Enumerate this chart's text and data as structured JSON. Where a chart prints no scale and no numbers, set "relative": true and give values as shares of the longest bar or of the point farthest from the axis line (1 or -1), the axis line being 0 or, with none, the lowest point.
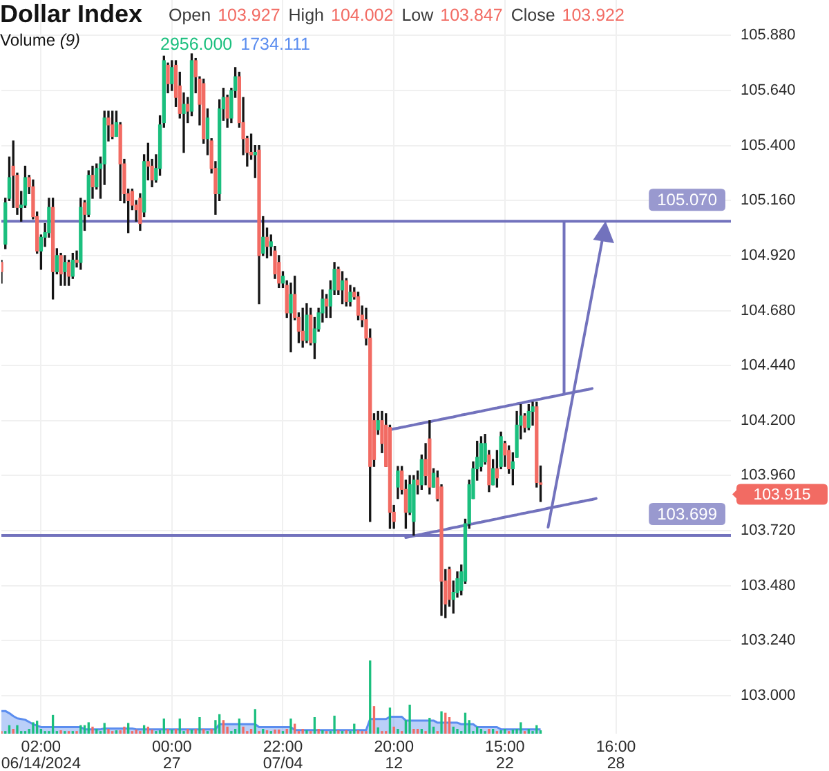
{
  "chart_data": [
    {
      "type": "candlestick",
      "title": "Dollar Index",
      "annotations": [
        "Open 103.927",
        "High 104.002",
        "Low 103.847",
        "Close 103.922",
        "103.915"
      ],
      "categories": [
        null,
        null,
        null,
        null,
        null,
        null,
        null,
        null,
        null,
        null,
        "02:00\n06/14/2024",
        null,
        null,
        null,
        null,
        null,
        null,
        null,
        null,
        null,
        null,
        null,
        null,
        null,
        null,
        null,
        null,
        null,
        null,
        null,
        null,
        null,
        null,
        null,
        null,
        null,
        null,
        null,
        null,
        null,
        null,
        null,
        null,
        "00:00\n27",
        null,
        null,
        null,
        null,
        null,
        null,
        null,
        null,
        null,
        null,
        null,
        null,
        null,
        null,
        null,
        null,
        null,
        null,
        null,
        null,
        null,
        null,
        null,
        null,
        null,
        null,
        null,
        "22:00\n07/04",
        null,
        null,
        null,
        null,
        null,
        null,
        null,
        null,
        null,
        null,
        null,
        null,
        null,
        null,
        null,
        null,
        null,
        null,
        null,
        null,
        null,
        null,
        null,
        null,
        null,
        null,
        null,
        "20:00\n12",
        null,
        null,
        null,
        null,
        null,
        null,
        null,
        null,
        null,
        null,
        null,
        null,
        null,
        null,
        null,
        null,
        null,
        null,
        null,
        null,
        null,
        null,
        null,
        null,
        null,
        null,
        null,
        "15:00\n22",
        null,
        null,
        null,
        null,
        null,
        null,
        null,
        null,
        null,
        null,
        null,
        null,
        null,
        null,
        null,
        null,
        null,
        null,
        null,
        null,
        null,
        null,
        null,
        null,
        null,
        null,
        null,
        "16:00\n28",
        null,
        null,
        null,
        null,
        null,
        null,
        null,
        null,
        null,
        null,
        null,
        null,
        null,
        null,
        null,
        null,
        null,
        null,
        null,
        null,
        null,
        null,
        null,
        null,
        null,
        null,
        null,
        null,
        null
      ],
      "ohlc": [
        [
          104.89,
          104.9,
          104.8,
          104.85
        ],
        [
          104.97,
          105.17,
          104.95,
          105.15
        ],
        [
          105.17,
          105.35,
          105.16,
          105.26
        ],
        [
          105.31,
          105.42,
          105.13,
          105.27
        ],
        [
          105.27,
          105.28,
          105.1,
          105.13
        ],
        [
          105.13,
          105.2,
          105.07,
          105.14
        ],
        [
          105.14,
          105.31,
          105.13,
          105.26
        ],
        [
          105.26,
          105.27,
          105.19,
          105.22
        ],
        [
          105.22,
          105.25,
          105.08,
          105.09
        ],
        [
          105.09,
          105.11,
          104.93,
          104.94
        ],
        [
          104.94,
          105.01,
          104.86,
          105.0
        ],
        [
          105.0,
          105.06,
          104.96,
          105.02
        ],
        [
          105.02,
          105.17,
          105.0,
          105.13
        ],
        [
          105.13,
          105.17,
          104.73,
          104.85
        ],
        [
          104.85,
          104.95,
          104.84,
          104.92
        ],
        [
          104.92,
          104.93,
          104.79,
          104.84
        ],
        [
          104.85,
          104.92,
          104.79,
          104.89
        ],
        [
          104.89,
          104.9,
          104.79,
          104.83
        ],
        [
          104.83,
          104.93,
          104.82,
          104.9
        ],
        [
          104.9,
          104.94,
          104.87,
          104.89
        ],
        [
          104.89,
          105.17,
          104.86,
          105.13
        ],
        [
          105.15,
          105.16,
          105.03,
          105.1
        ],
        [
          105.1,
          105.29,
          105.09,
          105.27
        ],
        [
          105.27,
          105.31,
          105.17,
          105.22
        ],
        [
          105.22,
          105.32,
          105.21,
          105.3
        ],
        [
          105.3,
          105.35,
          105.17,
          105.32
        ],
        [
          105.32,
          105.55,
          105.23,
          105.52
        ],
        [
          105.52,
          105.55,
          105.42,
          105.49
        ],
        [
          105.49,
          105.55,
          105.43,
          105.44
        ],
        [
          105.44,
          105.55,
          105.44,
          105.5
        ],
        [
          105.49,
          105.5,
          105.16,
          105.32
        ],
        [
          105.32,
          105.34,
          105.15,
          105.19
        ],
        [
          105.19,
          105.21,
          105.02,
          105.16
        ],
        [
          105.2,
          105.21,
          105.12,
          105.14
        ],
        [
          105.14,
          105.16,
          105.07,
          105.12
        ],
        [
          105.17,
          105.19,
          105.03,
          105.06
        ],
        [
          105.11,
          105.36,
          105.09,
          105.33
        ],
        [
          105.33,
          105.41,
          105.25,
          105.31
        ],
        [
          105.31,
          105.34,
          105.22,
          105.25
        ],
        [
          105.25,
          105.36,
          105.24,
          105.3
        ],
        [
          105.3,
          105.53,
          105.27,
          105.49
        ],
        [
          105.5,
          105.79,
          105.48,
          105.77
        ],
        [
          105.75,
          105.76,
          105.63,
          105.67
        ],
        [
          105.67,
          105.77,
          105.64,
          105.74
        ],
        [
          105.75,
          105.77,
          105.57,
          105.61
        ],
        [
          105.66,
          105.72,
          105.52,
          105.54
        ],
        [
          105.54,
          105.63,
          105.37,
          105.58
        ],
        [
          105.58,
          105.61,
          105.5,
          105.55
        ],
        [
          105.55,
          105.8,
          105.53,
          105.77
        ],
        [
          105.77,
          105.78,
          105.63,
          105.7
        ],
        [
          105.69,
          105.7,
          105.49,
          105.58
        ],
        [
          105.67,
          105.69,
          105.41,
          105.43
        ],
        [
          105.43,
          105.56,
          105.36,
          105.52
        ],
        [
          105.42,
          105.43,
          105.28,
          105.3
        ],
        [
          105.3,
          105.33,
          105.1,
          105.19
        ],
        [
          105.19,
          105.6,
          105.16,
          105.56
        ],
        [
          105.56,
          105.65,
          105.51,
          105.61
        ],
        [
          105.61,
          105.62,
          105.48,
          105.52
        ],
        [
          105.52,
          105.65,
          105.5,
          105.64
        ],
        [
          105.64,
          105.74,
          105.61,
          105.7
        ],
        [
          105.7,
          105.72,
          105.48,
          105.5
        ],
        [
          105.5,
          105.61,
          105.36,
          105.43
        ],
        [
          105.43,
          105.44,
          105.31,
          105.37
        ],
        [
          105.37,
          105.45,
          105.34,
          105.36
        ],
        [
          105.36,
          105.4,
          105.26,
          105.37
        ],
        [
          105.38,
          105.4,
          104.71,
          104.92
        ],
        [
          104.93,
          105.09,
          104.92,
          105.0
        ],
        [
          105.0,
          105.04,
          104.91,
          104.96
        ],
        [
          104.96,
          105.01,
          104.92,
          104.98
        ],
        [
          104.94,
          104.96,
          104.82,
          104.84
        ],
        [
          104.89,
          104.92,
          104.78,
          104.8
        ],
        [
          104.8,
          104.85,
          104.78,
          104.83
        ],
        [
          104.79,
          104.81,
          104.65,
          104.67
        ],
        [
          104.67,
          104.8,
          104.5,
          104.75
        ],
        [
          104.75,
          104.83,
          104.64,
          104.65
        ],
        [
          104.65,
          104.67,
          104.54,
          104.59
        ],
        [
          104.59,
          104.69,
          104.52,
          104.55
        ],
        [
          104.55,
          104.71,
          104.54,
          104.66
        ],
        [
          104.66,
          104.69,
          104.53,
          104.54
        ],
        [
          104.54,
          104.65,
          104.47,
          104.6
        ],
        [
          104.6,
          104.69,
          104.59,
          104.67
        ],
        [
          104.67,
          104.77,
          104.63,
          104.73
        ],
        [
          104.73,
          104.75,
          104.65,
          104.7
        ],
        [
          104.7,
          104.81,
          104.65,
          104.77
        ],
        [
          104.77,
          104.89,
          104.75,
          104.86
        ],
        [
          104.86,
          104.87,
          104.75,
          104.77
        ],
        [
          104.77,
          104.85,
          104.71,
          104.81
        ],
        [
          104.81,
          104.82,
          104.7,
          104.72
        ],
        [
          104.72,
          104.79,
          104.7,
          104.76
        ],
        [
          104.76,
          104.78,
          104.73,
          104.74
        ],
        [
          104.74,
          104.76,
          104.64,
          104.66
        ],
        [
          104.66,
          104.7,
          104.61,
          104.64
        ],
        [
          104.64,
          104.69,
          104.53,
          104.56
        ],
        [
          104.56,
          104.6,
          103.76,
          104.0
        ],
        [
          104.2,
          104.23,
          104.0,
          104.03
        ],
        [
          104.16,
          104.24,
          104.14,
          104.2
        ],
        [
          104.2,
          104.24,
          104.06,
          104.1
        ],
        [
          104.18,
          104.23,
          104.0,
          104.0
        ],
        [
          104.17,
          104.18,
          103.73,
          103.8
        ],
        [
          103.8,
          103.83,
          103.73,
          103.76
        ],
        [
          103.91,
          104.0,
          103.86,
          103.98
        ],
        [
          103.98,
          104.0,
          103.88,
          103.9
        ],
        [
          103.9,
          103.94,
          103.73,
          103.8
        ],
        [
          103.8,
          103.96,
          103.79,
          103.92
        ],
        [
          103.76,
          103.96,
          103.7,
          103.94
        ],
        [
          103.94,
          103.98,
          103.88,
          103.92
        ],
        [
          103.92,
          104.05,
          103.9,
          104.03
        ],
        [
          104.03,
          104.1,
          103.92,
          103.96
        ],
        [
          104.12,
          104.2,
          103.88,
          103.91
        ],
        [
          103.91,
          103.99,
          103.91,
          103.97
        ],
        [
          103.95,
          103.98,
          103.85,
          103.86
        ],
        [
          103.91,
          103.92,
          103.35,
          103.5
        ],
        [
          103.5,
          103.55,
          103.34,
          103.4
        ],
        [
          103.55,
          103.56,
          103.39,
          103.42
        ],
        [
          103.42,
          103.5,
          103.36,
          103.45
        ],
        [
          103.45,
          103.54,
          103.43,
          103.51
        ],
        [
          103.46,
          103.57,
          103.44,
          103.54
        ],
        [
          103.5,
          103.77,
          103.49,
          103.75
        ],
        [
          103.75,
          103.94,
          103.73,
          103.92
        ],
        [
          103.86,
          104.02,
          103.86,
          103.99
        ],
        [
          103.99,
          104.11,
          103.94,
          104.04
        ],
        [
          104.0,
          104.13,
          103.98,
          104.1
        ],
        [
          104.02,
          104.14,
          104.01,
          104.1
        ],
        [
          104.05,
          104.07,
          103.89,
          103.92
        ],
        [
          103.92,
          104.03,
          103.92,
          103.99
        ],
        [
          103.99,
          104.07,
          103.91,
          103.95
        ],
        [
          104.0,
          104.15,
          103.99,
          104.13
        ],
        [
          104.1,
          104.11,
          104.0,
          104.05
        ],
        [
          104.07,
          104.09,
          103.97,
          103.99
        ],
        [
          103.99,
          104.06,
          103.92,
          104.02
        ],
        [
          104.04,
          104.24,
          104.04,
          104.18
        ],
        [
          104.18,
          104.27,
          104.12,
          104.22
        ],
        [
          104.22,
          104.23,
          104.15,
          104.17
        ],
        [
          104.17,
          104.27,
          104.16,
          104.24
        ],
        [
          104.24,
          104.28,
          104.18,
          104.26
        ],
        [
          104.26,
          104.28,
          103.91,
          103.93
        ],
        [
          103.927,
          104.002,
          103.847,
          103.922
        ],
        null,
        null,
        null,
        null,
        null,
        null,
        null,
        null,
        null,
        null,
        null,
        null,
        null,
        null,
        null,
        null,
        null,
        null,
        null,
        null,
        null,
        null,
        null,
        null,
        null,
        null,
        null,
        null,
        null,
        null,
        null,
        null,
        null,
        null,
        null,
        null,
        null,
        null,
        null,
        null,
        null,
        null,
        null,
        null,
        null,
        null,
        null,
        null
      ],
      "series": [
        {
          "type": "line",
          "color": "#7272bd",
          "values": [
            null,
            null,
            null,
            null,
            null,
            null,
            null,
            null,
            null,
            null,
            null,
            null,
            null,
            null,
            null,
            null,
            null,
            null,
            null,
            null,
            null,
            null,
            null,
            null,
            null,
            null,
            null,
            null,
            null,
            null,
            null,
            null,
            null,
            null,
            null,
            null,
            null,
            null,
            null,
            null,
            null,
            null,
            null,
            null,
            null,
            null,
            null,
            null,
            null,
            null,
            null,
            null,
            null,
            null,
            null,
            null,
            null,
            null,
            null,
            null,
            null,
            null,
            null,
            null,
            null,
            null,
            null,
            null,
            null,
            null,
            null,
            null,
            null,
            null,
            null,
            null,
            null,
            null,
            null,
            null,
            null,
            null,
            null,
            null,
            null,
            null,
            null,
            null,
            null,
            null,
            null,
            null,
            null,
            null,
            null,
            null,
            null,
            null,
            104.16,
            104.164,
            104.167,
            104.171,
            104.174,
            104.178,
            104.181,
            104.185,
            104.188,
            104.192,
            104.195,
            104.199,
            104.202,
            104.206,
            104.209,
            104.213,
            104.216,
            104.22,
            104.224,
            104.227,
            104.231,
            104.234,
            104.238,
            104.241,
            104.245,
            104.248,
            104.252,
            104.255,
            104.259,
            104.262,
            104.266,
            104.269,
            104.273,
            104.276,
            104.28,
            104.284,
            104.287,
            104.291,
            104.294,
            104.298,
            104.301,
            104.305,
            104.308,
            104.312,
            104.315,
            104.319,
            104.322,
            104.326,
            104.329,
            104.333,
            104.336,
            104.34,
            null,
            null,
            null,
            null,
            null,
            null,
            null,
            null,
            null,
            null,
            null,
            null,
            null,
            null,
            null,
            null,
            null,
            null,
            null,
            null,
            null,
            null,
            null,
            null,
            null,
            null,
            null,
            null,
            null,
            null,
            null,
            null,
            null,
            null,
            null
          ]
        },
        {
          "type": "line",
          "color": "#7272bd",
          "values": [
            null,
            null,
            null,
            null,
            null,
            null,
            null,
            null,
            null,
            null,
            null,
            null,
            null,
            null,
            null,
            null,
            null,
            null,
            null,
            null,
            null,
            null,
            null,
            null,
            null,
            null,
            null,
            null,
            null,
            null,
            null,
            null,
            null,
            null,
            null,
            null,
            null,
            null,
            null,
            null,
            null,
            null,
            null,
            null,
            null,
            null,
            null,
            null,
            null,
            null,
            null,
            null,
            null,
            null,
            null,
            null,
            null,
            null,
            null,
            null,
            null,
            null,
            null,
            null,
            null,
            null,
            null,
            null,
            null,
            null,
            null,
            null,
            null,
            null,
            null,
            null,
            null,
            null,
            null,
            null,
            null,
            null,
            null,
            null,
            null,
            null,
            null,
            null,
            null,
            null,
            null,
            null,
            null,
            null,
            null,
            null,
            null,
            null,
            null,
            null,
            null,
            null,
            103.69,
            103.694,
            103.697,
            103.701,
            103.704,
            103.708,
            103.711,
            103.715,
            103.718,
            103.722,
            103.725,
            103.729,
            103.733,
            103.736,
            103.74,
            103.743,
            103.747,
            103.75,
            103.754,
            103.757,
            103.761,
            103.764,
            103.768,
            103.771,
            103.775,
            103.779,
            103.782,
            103.786,
            103.789,
            103.793,
            103.796,
            103.8,
            103.803,
            103.807,
            103.81,
            103.814,
            103.818,
            103.821,
            103.825,
            103.828,
            103.832,
            103.835,
            103.839,
            103.842,
            103.846,
            103.849,
            103.853,
            103.856,
            103.86,
            null,
            null,
            null,
            null,
            null,
            null,
            null,
            null,
            null,
            null,
            null,
            null,
            null,
            null,
            null,
            null,
            null,
            null,
            null,
            null,
            null,
            null,
            null,
            null,
            null,
            null,
            null,
            null,
            null,
            null,
            null,
            null,
            null,
            null
          ]
        }
      ],
      "ylim": [
        102.834,
        106.035
      ],
      "yticks": [
        {
          "value": 103,
          "label": "103.000"
        },
        {
          "value": 103.24,
          "label": "103.240"
        },
        {
          "value": 103.48,
          "label": "103.480"
        },
        {
          "value": 103.72,
          "label": "103.720"
        },
        {
          "value": 103.96,
          "label": "103.960"
        },
        {
          "value": 104.2,
          "label": "104.200"
        },
        {
          "value": 104.44,
          "label": "104.440"
        },
        {
          "value": 104.68,
          "label": "104.680"
        },
        {
          "value": 104.92,
          "label": "104.920"
        },
        {
          "value": 105.16,
          "label": "105.160"
        },
        {
          "value": 105.4,
          "label": "105.400"
        },
        {
          "value": 105.64,
          "label": "105.640"
        },
        {
          "value": 105.88,
          "label": "105.880"
        }
      ],
      "grid": true,
      "ref_lines": [
        {
          "axis": "y",
          "value": 105.07,
          "label": "105.070",
          "color": "#7272bd"
        },
        {
          "axis": "y",
          "value": 103.699,
          "label": "103.699",
          "color": "#7272bd"
        }
      ]
    },
    {
      "type": "bar",
      "title": "Volume (9)",
      "annotations": [
        "2956.000",
        "1734.111"
      ],
      "relative": true,
      "categories": [
        null,
        null,
        null,
        null,
        null,
        null,
        null,
        null,
        null,
        null,
        null,
        null,
        null,
        null,
        null,
        null,
        null,
        null,
        null,
        null,
        null,
        null,
        null,
        null,
        null,
        null,
        null,
        null,
        null,
        null,
        null,
        null,
        null,
        null,
        null,
        null,
        null,
        null,
        null,
        null,
        null,
        null,
        null,
        null,
        null,
        null,
        null,
        null,
        null,
        null,
        null,
        null,
        null,
        null,
        null,
        null,
        null,
        null,
        null,
        null,
        null,
        null,
        null,
        null,
        null,
        null,
        null,
        null,
        null,
        null,
        null,
        null,
        null,
        null,
        null,
        null,
        null,
        null,
        null,
        null,
        null,
        null,
        null,
        null,
        null,
        null,
        null,
        null,
        null,
        null,
        null,
        null,
        null,
        null,
        null,
        null,
        null,
        null,
        null,
        null,
        null,
        null,
        null,
        null,
        null,
        null,
        null,
        null,
        null,
        null,
        null,
        null,
        null,
        null,
        null,
        null,
        null,
        null,
        null,
        null,
        null,
        null,
        null,
        null,
        null,
        null,
        null,
        null,
        null,
        null,
        null,
        null,
        null,
        null,
        null,
        null,
        null,
        null,
        null,
        null,
        null,
        null,
        null,
        null,
        null,
        null,
        null,
        null,
        null,
        null,
        null,
        null,
        null,
        null,
        null,
        null,
        null,
        null,
        null,
        null,
        null,
        null,
        null,
        null,
        null,
        null,
        null,
        null,
        null,
        null,
        null,
        null,
        null,
        null,
        null,
        null,
        null,
        null,
        null,
        null,
        null,
        null,
        null,
        null,
        null
      ],
      "series": [
        {
          "values": [
            0.03,
            0.03,
            0.11,
            0.06,
            0.11,
            0.03,
            0.03,
            0.06,
            0.15,
            0.17,
            0.06,
            0.03,
            0.03,
            0.25,
            0.03,
            0.04,
            0.03,
            0.03,
            0.03,
            0.03,
            0.11,
            0.11,
            0.15,
            0.09,
            0.06,
            0.03,
            0.14,
            0.06,
            0.03,
            0.04,
            0.04,
            0.09,
            0.14,
            0.03,
            0.05,
            0.03,
            0.11,
            0.09,
            0.05,
            0.03,
            0.04,
            0.2,
            0.06,
            0.05,
            0.06,
            0.2,
            0.03,
            0.06,
            0.05,
            0.06,
            0.22,
            0.06,
            0.03,
            0.06,
            0.18,
            0.26,
            0.18,
            0.09,
            0.03,
            0.06,
            0.2,
            0.09,
            0.03,
            0.06,
            0.33,
            0.03,
            0.06,
            0.04,
            0.03,
            0.05,
            0.05,
            0.03,
            0.06,
            0.2,
            0.13,
            0.03,
            0.06,
            0.04,
            0.03,
            0.22,
            0.06,
            0.04,
            0.03,
            0.03,
            0.24,
            0.04,
            0.03,
            0.04,
            0.03,
            0.13,
            0.04,
            0.03,
            0.03,
            1,
            0.37,
            0.08,
            0.03,
            0.03,
            0.35,
            0.09,
            0.06,
            0.03,
            0.18,
            0.39,
            0.06,
            0.06,
            0.06,
            0.03,
            0.21,
            0.09,
            0.03,
            0.3,
            0.28,
            0.22,
            0.09,
            0.06,
            0.03,
            0.28,
            0.18,
            0.03,
            0.09,
            0.06,
            0.03,
            0.06,
            0.06,
            0.03,
            0.04,
            0.06,
            0.03,
            0.05,
            0.06,
            0.15,
            0.03,
            0.06,
            0.03,
            0.11,
            0.04,
            null,
            null,
            null,
            null,
            null,
            null,
            null,
            null,
            null,
            null,
            null,
            null,
            null,
            null,
            null,
            null,
            null,
            null,
            null,
            null,
            null,
            null,
            null,
            null,
            null,
            null,
            null,
            null,
            null,
            null,
            null,
            null,
            null,
            null,
            null,
            null,
            null,
            null,
            null,
            null,
            null,
            null,
            null,
            null,
            null,
            null,
            null,
            null
          ],
          "colors": [
            "#f26b63",
            "#1bbf7e",
            "#1bbf7e",
            "#f26b63",
            "#1bbf7e",
            "#1bbf7e",
            "#1bbf7e",
            "#1bbf7e",
            "#1bbf7e",
            "#1bbf7e",
            "#1bbf7e",
            "#1bbf7e",
            "#1bbf7e",
            "#1bbf7e",
            "#1bbf7e",
            "#f26b63",
            "#1bbf7e",
            "#f26b63",
            "#1bbf7e",
            "#f26b63",
            "#1bbf7e",
            "#1bbf7e",
            "#1bbf7e",
            "#f26b63",
            "#1bbf7e",
            "#1bbf7e",
            "#1bbf7e",
            "#f26b63",
            "#f26b63",
            "#1bbf7e",
            "#f26b63",
            "#f26b63",
            "#1bbf7e",
            "#f26b63",
            "#f26b63",
            "#f26b63",
            "#1bbf7e",
            "#f26b63",
            "#f26b63",
            "#1bbf7e",
            "#1bbf7e",
            "#1bbf7e",
            "#f26b63",
            "#1bbf7e",
            "#f26b63",
            "#1bbf7e",
            "#1bbf7e",
            "#f26b63",
            "#1bbf7e",
            "#f26b63",
            "#1bbf7e",
            "#f26b63",
            "#1bbf7e",
            "#f26b63",
            "#1bbf7e",
            "#1bbf7e",
            "#f26b63",
            "#f26b63",
            "#1bbf7e",
            "#1bbf7e",
            "#1bbf7e",
            "#f26b63",
            "#f26b63",
            "#f26b63",
            "#1bbf7e",
            "#f26b63",
            "#1bbf7e",
            "#f26b63",
            "#1bbf7e",
            "#f26b63",
            "#f26b63",
            "#1bbf7e",
            "#f26b63",
            "#1bbf7e",
            "#f26b63",
            "#f26b63",
            "#f26b63",
            "#1bbf7e",
            "#f26b63",
            "#1bbf7e",
            "#f26b63",
            "#1bbf7e",
            "#f26b63",
            "#1bbf7e",
            "#1bbf7e",
            "#f26b63",
            "#1bbf7e",
            "#f26b63",
            "#1bbf7e",
            "#1bbf7e",
            "#f26b63",
            "#f26b63",
            "#f26b63",
            "#1bbf7e",
            "#f26b63",
            "#1bbf7e",
            "#f26b63",
            "#f26b63",
            "#1bbf7e",
            "#f26b63",
            "#1bbf7e",
            "#f26b63",
            "#1bbf7e",
            "#1bbf7e",
            "#f26b63",
            "#f26b63",
            "#1bbf7e",
            "#f26b63",
            "#1bbf7e",
            "#1bbf7e",
            "#f26b63",
            "#1bbf7e",
            "#f26b63",
            "#f26b63",
            "#1bbf7e",
            "#1bbf7e",
            "#1bbf7e",
            "#1bbf7e",
            "#1bbf7e",
            "#1bbf7e",
            "#1bbf7e",
            "#1bbf7e",
            "#1bbf7e",
            "#f26b63",
            "#1bbf7e",
            "#f26b63",
            "#1bbf7e",
            "#1bbf7e",
            "#f26b63",
            "#1bbf7e",
            "#1bbf7e",
            "#1bbf7e",
            "#f26b63",
            "#1bbf7e",
            "#1bbf7e",
            "#1bbf7e",
            "#1bbf7e",
            null,
            null,
            null,
            null,
            null,
            null,
            null,
            null,
            null,
            null,
            null,
            null,
            null,
            null,
            null,
            null,
            null,
            null,
            null,
            null,
            null,
            null,
            null,
            null,
            null,
            null,
            null,
            null,
            null,
            null,
            null,
            null,
            null,
            null,
            null,
            null,
            null,
            null,
            null,
            null,
            null,
            null,
            null,
            null,
            null,
            null,
            null,
            null
          ]
        },
        {
          "type": "area",
          "color": "#5b8def",
          "values": [
            0.31,
            0.31,
            0.28,
            0.24,
            0.21,
            0.2,
            0.19,
            0.16,
            0.13,
            0.11,
            0.09,
            0.09,
            0.09,
            0.09,
            0.09,
            0.09,
            0.09,
            0.09,
            0.09,
            0.09,
            0.09,
            0.06,
            0.06,
            0.06,
            0.06,
            0.06,
            0.07,
            0.07,
            0.07,
            0.07,
            0.07,
            0.07,
            0.07,
            0.07,
            0.06,
            0.06,
            0.06,
            0.06,
            0.06,
            0.06,
            0.06,
            0.06,
            0.06,
            0.06,
            0.06,
            0.06,
            0.06,
            0.06,
            0.06,
            0.06,
            0.06,
            0.06,
            0.06,
            0.06,
            0.06,
            0.13,
            0.13,
            0.13,
            0.13,
            0.13,
            0.13,
            0.13,
            0.13,
            0.13,
            0.13,
            0.09,
            0.09,
            0.09,
            0.09,
            0.09,
            0.09,
            0.09,
            0.09,
            0.09,
            0.05,
            0.05,
            0.05,
            0.05,
            0.05,
            0.05,
            0.05,
            0.05,
            0.05,
            0.05,
            0.05,
            0.05,
            0.05,
            0.05,
            0.05,
            0.05,
            0.05,
            0.05,
            0.05,
            0.2,
            0.2,
            0.2,
            0.2,
            0.2,
            0.23,
            0.23,
            0.23,
            0.23,
            0.18,
            0.18,
            0.18,
            0.18,
            0.18,
            0.18,
            0.18,
            0.18,
            0.15,
            0.15,
            0.15,
            0.15,
            0.15,
            0.15,
            0.13,
            0.13,
            0.13,
            0.13,
            0.09,
            0.09,
            0.09,
            0.09,
            0.09,
            0.09,
            0.06,
            0.06,
            0.06,
            0.06,
            0.06,
            0.06,
            0.06,
            0.06,
            0.06,
            0.06,
            0.06,
            null,
            null,
            null,
            null,
            null,
            null,
            null,
            null,
            null,
            null,
            null,
            null,
            null,
            null,
            null,
            null,
            null,
            null,
            null,
            null,
            null,
            null,
            null,
            null,
            null,
            null,
            null,
            null,
            null,
            null,
            null,
            null,
            null,
            null,
            null,
            null,
            null,
            null,
            null,
            null,
            null,
            null,
            null,
            null,
            null,
            null,
            null,
            null
          ]
        }
      ]
    }
  ]
}
